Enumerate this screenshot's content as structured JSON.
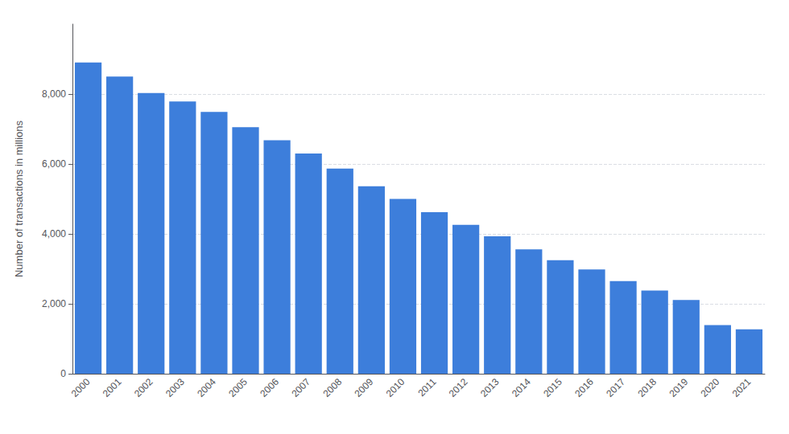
{
  "chart_data": {
    "type": "bar",
    "categories": [
      "2000",
      "2001",
      "2002",
      "2003",
      "2004",
      "2005",
      "2006",
      "2007",
      "2008",
      "2009",
      "2010",
      "2011",
      "2012",
      "2013",
      "2014",
      "2015",
      "2016",
      "2017",
      "2018",
      "2019",
      "2020",
      "2021"
    ],
    "values": [
      8900,
      8500,
      8030,
      7790,
      7490,
      7050,
      6680,
      6300,
      5870,
      5360,
      5000,
      4620,
      4260,
      3930,
      3560,
      3250,
      2980,
      2650,
      2380,
      2110,
      1390,
      1270
    ],
    "color": "#3d7edb",
    "ylabel": "Number of transactions in millions",
    "ylim": [
      0,
      10000
    ],
    "yticks": [
      0,
      {
        "value": 2000,
        "label": "2,000"
      },
      {
        "value": 4000,
        "label": "4,000"
      },
      {
        "value": 6000,
        "label": "6,000"
      },
      {
        "value": 8000,
        "label": "8,000"
      }
    ],
    "grid": true
  }
}
